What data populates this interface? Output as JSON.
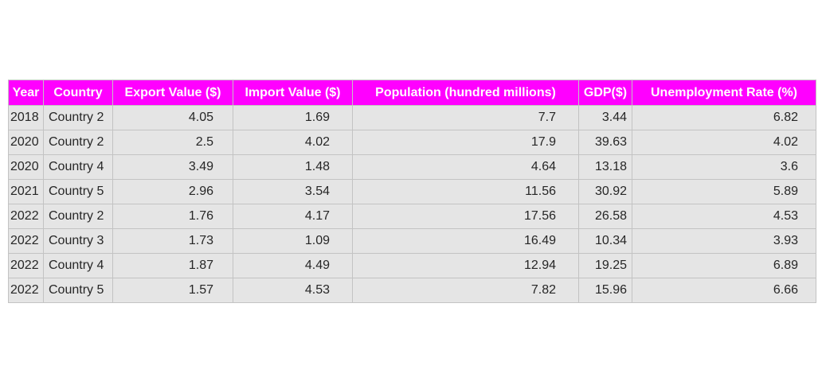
{
  "chart_data": {
    "type": "table",
    "columns": [
      "Year",
      "Country",
      "Export Value ($)",
      "Import Value ($)",
      "Population (hundred millions)",
      "GDP($)",
      "Unemployment Rate (%)"
    ],
    "rows": [
      [
        "2018",
        "Country 2",
        "4.05",
        "1.69",
        "7.7",
        "3.44",
        "6.82"
      ],
      [
        "2020",
        "Country 2",
        "2.5",
        "4.02",
        "17.9",
        "39.63",
        "4.02"
      ],
      [
        "2020",
        "Country 4",
        "3.49",
        "1.48",
        "4.64",
        "13.18",
        "3.6"
      ],
      [
        "2021",
        "Country 5",
        "2.96",
        "3.54",
        "11.56",
        "30.92",
        "5.89"
      ],
      [
        "2022",
        "Country 2",
        "1.76",
        "4.17",
        "17.56",
        "26.58",
        "4.53"
      ],
      [
        "2022",
        "Country 3",
        "1.73",
        "1.09",
        "16.49",
        "10.34",
        "3.93"
      ],
      [
        "2022",
        "Country 4",
        "1.87",
        "4.49",
        "12.94",
        "19.25",
        "6.89"
      ],
      [
        "2022",
        "Country 5",
        "1.57",
        "4.53",
        "7.82",
        "15.96",
        "6.66"
      ]
    ],
    "header_color": "#ff00ff",
    "header_text_color": "#ffffff",
    "cell_color": "#e5e5e5",
    "border_color": "#c3c3c3"
  }
}
